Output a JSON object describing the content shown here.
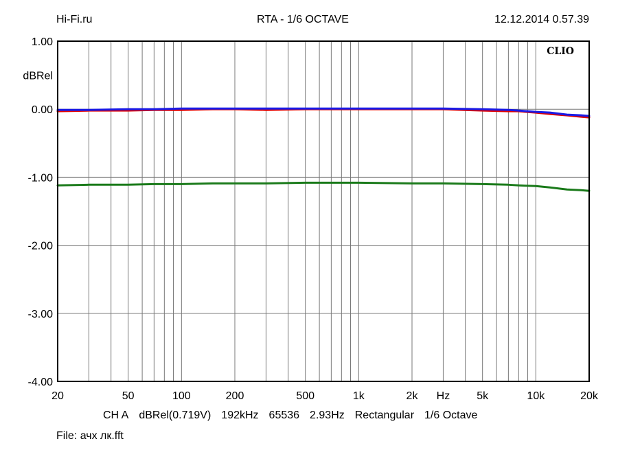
{
  "header": {
    "left": "Hi-Fi.ru",
    "center": "RTA - 1/6 OCTAVE",
    "right": "12.12.2014 0.57.39"
  },
  "logo": "CLIO",
  "footer": {
    "settings": [
      "CH A",
      "dBRel(0.719V)",
      "192kHz",
      "65536",
      "2.93Hz",
      "Rectangular",
      "1/6 Octave"
    ],
    "file_label": "File:",
    "file_name": "ачх лк.fft"
  },
  "chart_data": {
    "type": "line",
    "xscale": "log",
    "xlim": [
      20,
      20000
    ],
    "ylim": [
      -4.0,
      1.0
    ],
    "ylabel": "dBRel",
    "xunit_label": "Hz",
    "grid": true,
    "yticks": [
      {
        "value": 1.0,
        "label": "1.00"
      },
      {
        "value": 0.0,
        "label": "0.00"
      },
      {
        "value": -1.0,
        "label": "-1.00"
      },
      {
        "value": -2.0,
        "label": "-2.00"
      },
      {
        "value": -3.0,
        "label": "-3.00"
      },
      {
        "value": -4.0,
        "label": "-4.00"
      }
    ],
    "xticks": [
      {
        "value": 20,
        "label": "20"
      },
      {
        "value": 50,
        "label": "50"
      },
      {
        "value": 100,
        "label": "100"
      },
      {
        "value": 200,
        "label": "200"
      },
      {
        "value": 500,
        "label": "500"
      },
      {
        "value": 1000,
        "label": "1k"
      },
      {
        "value": 2000,
        "label": "2k"
      },
      {
        "value": 5000,
        "label": "5k"
      },
      {
        "value": 10000,
        "label": "10k"
      },
      {
        "value": 20000,
        "label": "20k"
      }
    ],
    "series": [
      {
        "color": "#e00000",
        "x": [
          20,
          30,
          50,
          70,
          100,
          150,
          200,
          300,
          500,
          700,
          1000,
          2000,
          3000,
          5000,
          7000,
          8000,
          10000,
          12000,
          15000,
          18000,
          20000
        ],
        "y": [
          -0.03,
          -0.02,
          -0.02,
          -0.01,
          -0.01,
          0.0,
          0.0,
          -0.01,
          0.0,
          0.0,
          0.0,
          0.0,
          0.0,
          -0.02,
          -0.03,
          -0.03,
          -0.05,
          -0.07,
          -0.09,
          -0.11,
          -0.12
        ]
      },
      {
        "color": "#1a1ae6",
        "x": [
          20,
          30,
          50,
          70,
          100,
          150,
          200,
          300,
          500,
          700,
          1000,
          2000,
          3000,
          5000,
          7000,
          8000,
          10000,
          12000,
          15000,
          18000,
          20000
        ],
        "y": [
          -0.01,
          -0.01,
          0.0,
          0.0,
          0.01,
          0.01,
          0.01,
          0.01,
          0.01,
          0.01,
          0.01,
          0.01,
          0.01,
          0.0,
          -0.01,
          -0.02,
          -0.04,
          -0.05,
          -0.08,
          -0.09,
          -0.1
        ]
      },
      {
        "color": "#1a7a1a",
        "x": [
          20,
          30,
          50,
          70,
          100,
          150,
          200,
          300,
          500,
          700,
          1000,
          2000,
          3000,
          5000,
          7000,
          8000,
          10000,
          12000,
          15000,
          18000,
          20000
        ],
        "y": [
          -1.12,
          -1.11,
          -1.11,
          -1.1,
          -1.1,
          -1.09,
          -1.09,
          -1.09,
          -1.08,
          -1.08,
          -1.08,
          -1.09,
          -1.09,
          -1.1,
          -1.11,
          -1.12,
          -1.13,
          -1.15,
          -1.18,
          -1.19,
          -1.2
        ]
      }
    ]
  }
}
